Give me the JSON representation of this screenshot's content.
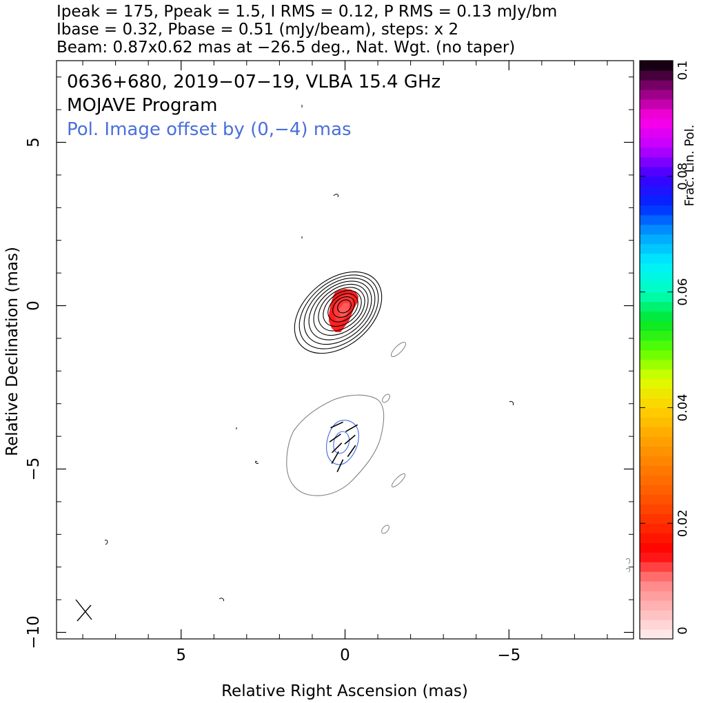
{
  "header": {
    "line1": "Ipeak = 175, Ppeak = 1.5, I RMS = 0.12, P RMS = 0.13 mJy/bm",
    "line2": "Ibase = 0.32, Pbase = 0.51 (mJy/beam), steps: x 2",
    "line3": "Beam: 0.87x0.62 mas at −26.5 deg., Nat. Wgt. (no taper)"
  },
  "annotations": {
    "source_line": "0636+680, 2019−07−19, VLBA 15.4 GHz",
    "program_line": "MOJAVE Program",
    "offset_line": "Pol. Image offset by (0,−4) mas"
  },
  "colors": {
    "total_intensity_contour": "#000000",
    "pol_lowest_contour": "#808080",
    "pol_contour": "#4169e1",
    "offset_text": "#4a6fd8"
  },
  "chart_data": {
    "type": "heatmap",
    "xlabel": "Relative Right Ascension (mas)",
    "ylabel": "Relative Declination (mas)",
    "xlim": [
      8.8,
      -8.8
    ],
    "ylim": [
      -10.2,
      7.5
    ],
    "x_ticks": [
      {
        "value": 5,
        "label": "5"
      },
      {
        "value": 0,
        "label": "0"
      },
      {
        "value": -5,
        "label": "−5"
      }
    ],
    "y_ticks": [
      {
        "value": 5,
        "label": "5"
      },
      {
        "value": 0,
        "label": "0"
      },
      {
        "value": -5,
        "label": "−5"
      },
      {
        "value": -10,
        "label": "−10"
      }
    ],
    "colorbar": {
      "label": "Frac. Lin. Pol.",
      "range": [
        0,
        0.1
      ],
      "ticks": [
        "0",
        "0.02",
        "0.04",
        "0.06",
        "0.08",
        "0.1"
      ],
      "tick_values": [
        0,
        0.02,
        0.04,
        0.06,
        0.08,
        0.1
      ]
    },
    "stokes_i_contours": {
      "center": [
        0,
        0
      ],
      "count": 10,
      "base_mJy_per_beam": 0.32,
      "step_factor": 2
    },
    "pol_contours": {
      "center": [
        0,
        -4
      ],
      "base_mJy_per_beam": 0.51,
      "step_factor": 2
    },
    "frac_pol_core": {
      "x": -0.05,
      "y": 0,
      "value": 0.012
    },
    "evpa_vectors": [
      {
        "x": 0.25,
        "y": -3.65,
        "angle": 25
      },
      {
        "x": -0.2,
        "y": -3.75,
        "angle": 30
      },
      {
        "x": 0.3,
        "y": -4.05,
        "angle": 35
      },
      {
        "x": -0.15,
        "y": -4.1,
        "angle": 40
      },
      {
        "x": 0.25,
        "y": -4.35,
        "angle": 45
      },
      {
        "x": 0.3,
        "y": -4.65,
        "angle": 60
      },
      {
        "x": -0.2,
        "y": -4.45,
        "angle": 55
      },
      {
        "x": 0.15,
        "y": -4.9,
        "angle": 65
      }
    ],
    "beam": {
      "major_mas": 0.87,
      "minor_mas": 0.62,
      "pa_deg": -26.5
    }
  }
}
